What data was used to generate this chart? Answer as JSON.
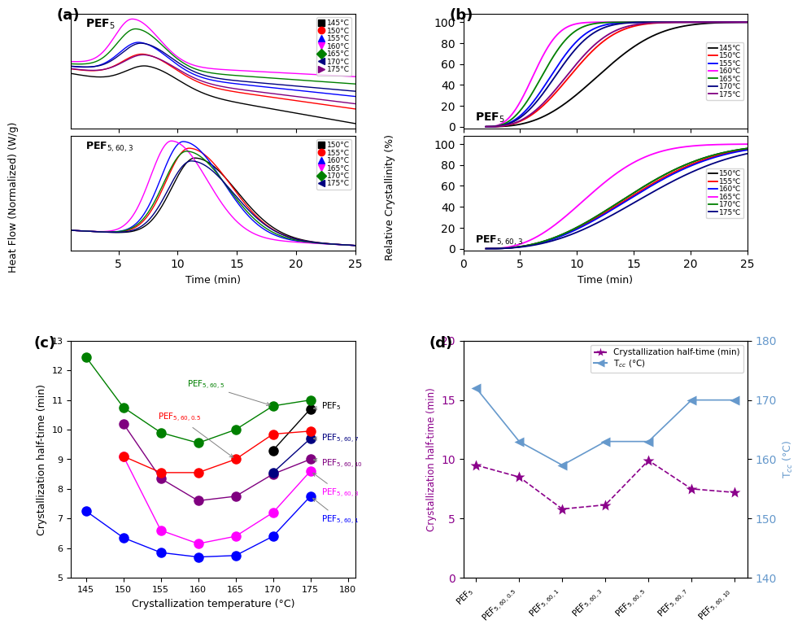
{
  "panel_a": {
    "ylabel": "Heat Flow (Normalized) (W/g)",
    "xlabel": "Time (min)",
    "colors1": [
      "black",
      "red",
      "blue",
      "magenta",
      "green",
      "#000080",
      "purple"
    ],
    "labels1": [
      "145°C",
      "150°C",
      "155°C",
      "160°C",
      "165°C",
      "170°C",
      "175°C"
    ],
    "markers1": [
      "s",
      "o",
      "^",
      "v",
      "D",
      "<",
      ">"
    ],
    "colors2": [
      "black",
      "red",
      "blue",
      "magenta",
      "green",
      "#000080"
    ],
    "labels2": [
      "150°C",
      "155°C",
      "160°C",
      "165°C",
      "170°C",
      "175°C"
    ],
    "markers2": [
      "s",
      "o",
      "^",
      "v",
      "D",
      "<"
    ]
  },
  "panel_b": {
    "ylabel": "Relative Crystallinity (%)",
    "xlabel": "Time (min)",
    "colors1": [
      "black",
      "red",
      "blue",
      "magenta",
      "green",
      "#000080",
      "purple"
    ],
    "labels1": [
      "145℃",
      "150℃",
      "155℃",
      "160℃",
      "165℃",
      "170℃",
      "175℃"
    ],
    "colors2": [
      "black",
      "red",
      "blue",
      "magenta",
      "green",
      "#000080"
    ],
    "labels2": [
      "150℃",
      "155℃",
      "160℃",
      "165℃",
      "170℃",
      "175℃"
    ]
  },
  "panel_c": {
    "xlabel": "Crystallization temperature (°C)",
    "ylabel": "Crystallization half-time (min)",
    "series": {
      "PEF5": {
        "color": "black",
        "x": [
          170,
          175
        ],
        "y": [
          9.3,
          10.7
        ],
        "label": "PEF$_5$"
      },
      "PEF5605": {
        "color": "green",
        "x": [
          145,
          150,
          155,
          160,
          165,
          170,
          175
        ],
        "y": [
          12.45,
          10.75,
          9.9,
          9.55,
          10.0,
          10.8,
          11.0
        ],
        "label": "PEF$_{5,60,5}$"
      },
      "PEF56005": {
        "color": "red",
        "x": [
          150,
          155,
          160,
          165,
          170,
          175
        ],
        "y": [
          9.1,
          8.55,
          8.55,
          9.0,
          9.85,
          9.95
        ],
        "label": "PEF$_{5,60,0.5}$"
      },
      "PEF5607": {
        "color": "#000080",
        "x": [
          170,
          175
        ],
        "y": [
          8.55,
          9.7
        ],
        "label": "PEF$_{5,60,7}$"
      },
      "PEF56010": {
        "color": "purple",
        "x": [
          150,
          155,
          160,
          165,
          170,
          175
        ],
        "y": [
          10.2,
          8.35,
          7.6,
          7.75,
          8.5,
          9.0
        ],
        "label": "PEF$_{5,60,10}$"
      },
      "PEF5603": {
        "color": "magenta",
        "x": [
          150,
          155,
          160,
          165,
          170,
          175
        ],
        "y": [
          9.1,
          6.6,
          6.15,
          6.4,
          7.2,
          8.6
        ],
        "label": "PEF$_{5,60,3}$"
      },
      "PEF5601": {
        "color": "blue",
        "x": [
          145,
          150,
          155,
          160,
          165,
          170,
          175
        ],
        "y": [
          7.25,
          6.35,
          5.85,
          5.7,
          5.75,
          6.4,
          7.75
        ],
        "label": "PEF$_{5,60,1}$"
      }
    }
  },
  "panel_d": {
    "ylabel_left": "Crystallization half-time (min)",
    "ylabel_right": "T$_{cc}$ (°C)",
    "ylim_left": [
      0,
      20
    ],
    "ylim_right": [
      140,
      180
    ],
    "yticks_left": [
      0,
      5,
      10,
      15,
      20
    ],
    "yticks_right": [
      140,
      150,
      160,
      170,
      180
    ],
    "samples": [
      "PEF$_5$",
      "PEF$_{5,60,0.5}$",
      "PEF$_{5,60,1}$",
      "PEF$_{5,60,3}$",
      "PEF$_{5,60,5}$",
      "PEF$_{5,60,7}$",
      "PEF$_{5,60,10}$"
    ],
    "half_time": [
      9.5,
      8.5,
      5.8,
      6.15,
      9.9,
      7.5,
      7.2
    ],
    "tcc": [
      172,
      163,
      159,
      163,
      163,
      170,
      170
    ],
    "color_halftime": "#8B008B",
    "color_tcc": "#6699CC",
    "marker_halftime": "*",
    "marker_tcc": "<"
  }
}
